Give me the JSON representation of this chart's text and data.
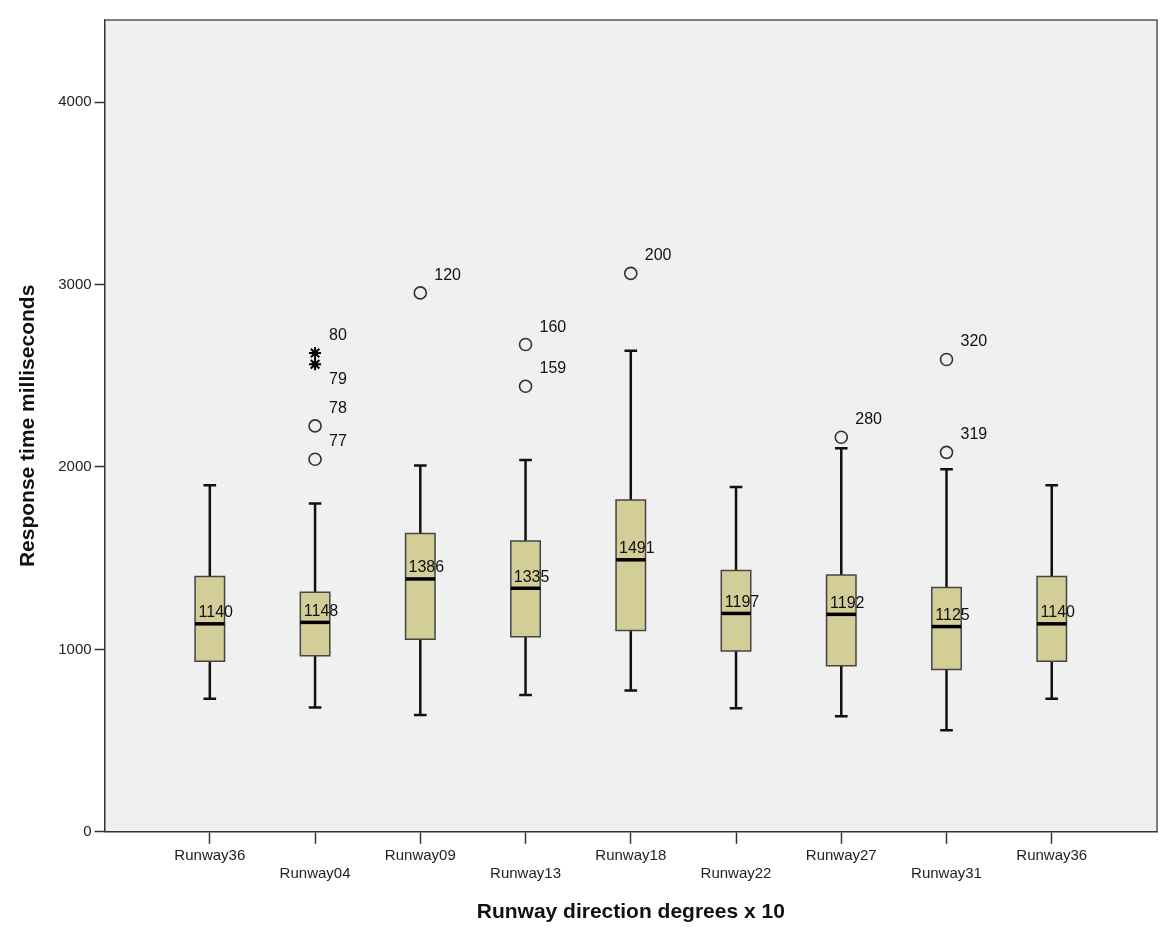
{
  "chart_data": {
    "type": "box",
    "xlabel": "Runway direction degrees x 10",
    "ylabel": "Response time milliseconds",
    "categories": [
      "Runway36",
      "Runway04",
      "Runway09",
      "Runway13",
      "Runway18",
      "Runway22",
      "Runway27",
      "Runway31",
      "Runway36"
    ],
    "ylim": [
      0,
      4450
    ],
    "yticks": [
      0,
      1000,
      2000,
      3000,
      4000
    ],
    "grid": false,
    "legend": false,
    "series": [
      {
        "color": "#d3ce97",
        "value_labels": [
          "1140",
          "1148",
          "1386",
          "1335",
          "1491",
          "1197",
          "1192",
          "1125",
          "1140"
        ],
        "boxes": [
          {
            "low": 730,
            "q1": 935,
            "median": 1140,
            "q3": 1400,
            "high": 1900
          },
          {
            "low": 681,
            "q1": 965,
            "median": 1148,
            "q3": 1313,
            "high": 1800
          },
          {
            "low": 640,
            "q1": 1056,
            "median": 1386,
            "q3": 1635,
            "high": 2008
          },
          {
            "low": 750,
            "q1": 1069,
            "median": 1335,
            "q3": 1594,
            "high": 2038
          },
          {
            "low": 774,
            "q1": 1103,
            "median": 1491,
            "q3": 1819,
            "high": 2637
          },
          {
            "low": 677,
            "q1": 991,
            "median": 1197,
            "q3": 1432,
            "high": 1890
          },
          {
            "low": 633,
            "q1": 910,
            "median": 1192,
            "q3": 1408,
            "high": 2103
          },
          {
            "low": 556,
            "q1": 890,
            "median": 1125,
            "q3": 1339,
            "high": 1987
          },
          {
            "low": 730,
            "q1": 935,
            "median": 1140,
            "q3": 1400,
            "high": 1900
          }
        ]
      },
      {
        "type": "scatter",
        "marker": "cross",
        "color": "#000000",
        "x": [
          "Runway04",
          "Runway04"
        ],
        "values": [
          2625,
          2563
        ]
      },
      {
        "type": "scatter",
        "marker": "circle",
        "color": "#333333",
        "x": [
          "Runway04",
          "Runway04",
          "Runway09",
          "Runway13",
          "Runway13",
          "Runway18",
          "Runway27",
          "Runway31",
          "Runway31"
        ],
        "values": [
          2225,
          2042,
          2954,
          2671,
          2442,
          3061,
          2163,
          2589,
          2080
        ]
      }
    ],
    "annotations": [
      {
        "text": "80",
        "x": "Runway04",
        "y": 2625
      },
      {
        "text": "79",
        "x": "Runway04",
        "y": 2563
      },
      {
        "text": "78",
        "x": "Runway04",
        "y": 2225
      },
      {
        "text": "77",
        "x": "Runway04",
        "y": 2042
      },
      {
        "text": "120",
        "x": "Runway09",
        "y": 2954
      },
      {
        "text": "160",
        "x": "Runway13",
        "y": 2671
      },
      {
        "text": "159",
        "x": "Runway13",
        "y": 2442
      },
      {
        "text": "200",
        "x": "Runway18",
        "y": 3061
      },
      {
        "text": "280",
        "x": "Runway27",
        "y": 2163
      },
      {
        "text": "320",
        "x": "Runway31",
        "y": 2589
      },
      {
        "text": "319",
        "x": "Runway31",
        "y": 2080
      }
    ]
  }
}
